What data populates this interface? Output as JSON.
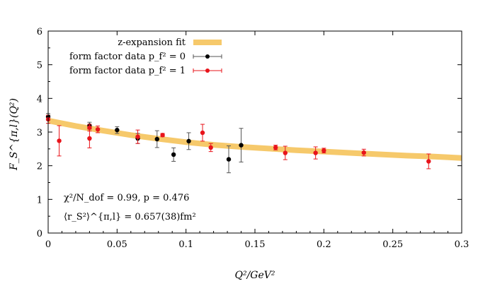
{
  "chart_data": {
    "type": "scatter",
    "xlabel": "Q²/GeV²",
    "ylabel": "F_S^{π,l}(Q²)",
    "xlim": [
      0,
      0.3
    ],
    "ylim": [
      0,
      6
    ],
    "x_ticks": [
      "0",
      "0.05",
      "0.1",
      "0.15",
      "0.2",
      "0.25",
      "0.3"
    ],
    "y_ticks": [
      "0",
      "1",
      "2",
      "3",
      "4",
      "5",
      "6"
    ],
    "grid": false,
    "legend_position": "top-right",
    "legend": [
      {
        "label": "z-expansion fit",
        "color": "#f6c96b",
        "kind": "band"
      },
      {
        "label": "form factor data p_f² = 0",
        "color": "#000000",
        "kind": "point"
      },
      {
        "label": "form factor data p_f² = 1",
        "color": "#e8141b",
        "kind": "point"
      }
    ],
    "fit_band": {
      "name": "z-expansion fit",
      "color": "#f6c96b",
      "x": [
        0,
        0.02,
        0.04,
        0.06,
        0.08,
        0.1,
        0.12,
        0.14,
        0.16,
        0.18,
        0.2,
        0.22,
        0.24,
        0.26,
        0.28,
        0.3
      ],
      "y": [
        3.34,
        3.18,
        3.04,
        2.91,
        2.8,
        2.7,
        2.62,
        2.56,
        2.51,
        2.46,
        2.42,
        2.38,
        2.34,
        2.3,
        2.27,
        2.23
      ]
    },
    "series": [
      {
        "name": "form factor data p_f² = 0",
        "color": "#000000",
        "points": [
          {
            "x": 0.0,
            "y": 3.45,
            "err": 0.1
          },
          {
            "x": 0.03,
            "y": 3.19,
            "err": 0.1
          },
          {
            "x": 0.05,
            "y": 3.06,
            "err": 0.1
          },
          {
            "x": 0.065,
            "y": 2.81,
            "err": 0.15
          },
          {
            "x": 0.079,
            "y": 2.79,
            "err": 0.25
          },
          {
            "x": 0.091,
            "y": 2.33,
            "err": 0.2
          },
          {
            "x": 0.102,
            "y": 2.73,
            "err": 0.25
          },
          {
            "x": 0.131,
            "y": 2.19,
            "err": 0.4
          },
          {
            "x": 0.14,
            "y": 2.61,
            "err": 0.5
          }
        ]
      },
      {
        "name": "form factor data p_f² = 1",
        "color": "#e8141b",
        "points": [
          {
            "x": 0.0,
            "y": 3.38,
            "err": 0.12
          },
          {
            "x": 0.008,
            "y": 2.74,
            "err": 0.45
          },
          {
            "x": 0.03,
            "y": 3.13,
            "err": 0.1
          },
          {
            "x": 0.03,
            "y": 2.81,
            "err": 0.28
          },
          {
            "x": 0.036,
            "y": 3.08,
            "err": 0.1
          },
          {
            "x": 0.065,
            "y": 2.86,
            "err": 0.2
          },
          {
            "x": 0.083,
            "y": 2.91,
            "err": 0.05
          },
          {
            "x": 0.112,
            "y": 2.98,
            "err": 0.25
          },
          {
            "x": 0.118,
            "y": 2.54,
            "err": 0.12
          },
          {
            "x": 0.165,
            "y": 2.54,
            "err": 0.07
          },
          {
            "x": 0.172,
            "y": 2.38,
            "err": 0.2
          },
          {
            "x": 0.194,
            "y": 2.38,
            "err": 0.18
          },
          {
            "x": 0.2,
            "y": 2.45,
            "err": 0.07
          },
          {
            "x": 0.229,
            "y": 2.39,
            "err": 0.1
          },
          {
            "x": 0.276,
            "y": 2.13,
            "err": 0.22
          }
        ]
      }
    ],
    "annotations": [
      "χ²/N_dof = 0.99,  p = 0.476",
      "⟨r_S²⟩^{π,l} = 0.657(38)fm²"
    ]
  }
}
